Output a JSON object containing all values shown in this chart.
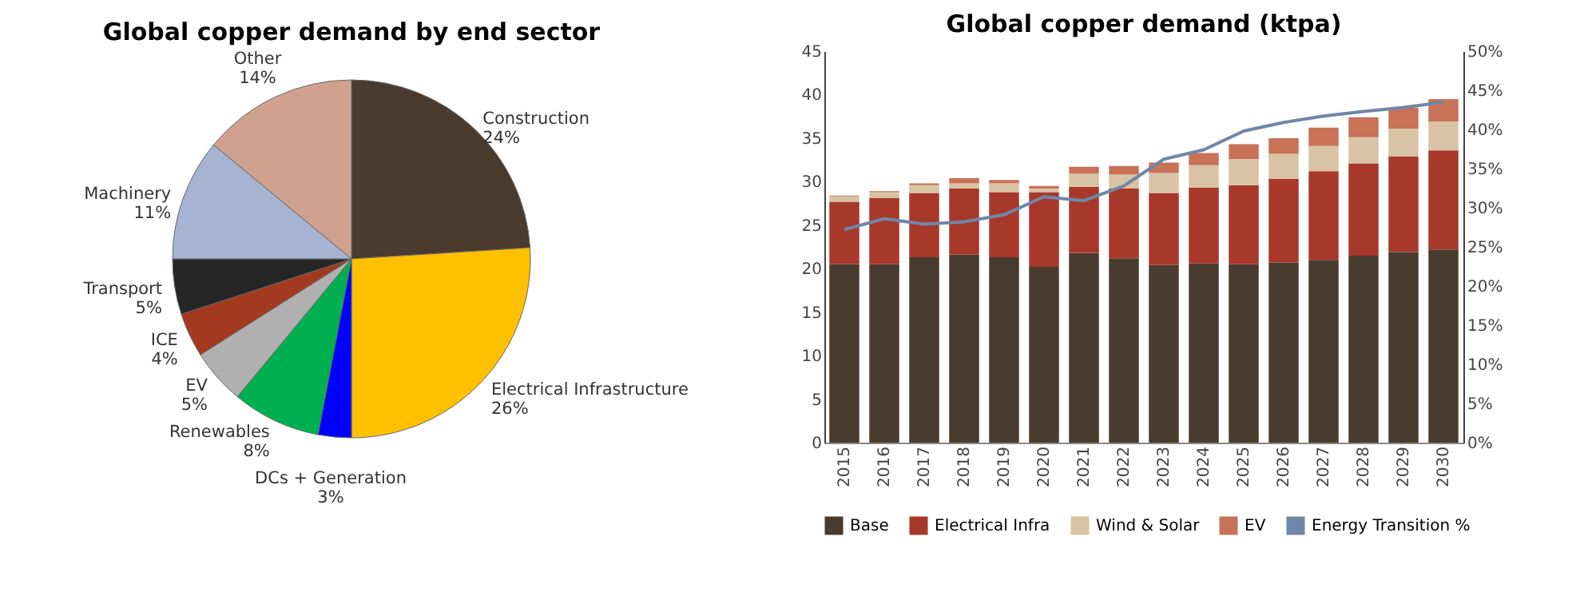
{
  "chart_data": [
    {
      "type": "pie",
      "title": "Global copper demand by end sector",
      "categories": [
        "Construction",
        "Electrical Infrastructure",
        "DCs + Generation",
        "Renewables",
        "EV",
        "ICE",
        "Transport",
        "Machinery",
        "Other"
      ],
      "values": [
        24,
        26,
        3,
        8,
        5,
        4,
        5,
        11,
        14
      ],
      "value_labels": [
        "24%",
        "26%",
        "3%",
        "8%",
        "5%",
        "4%",
        "5%",
        "11%",
        "14%"
      ],
      "colors": [
        "#4b3a2e",
        "#ffc000",
        "#0000ff",
        "#00b050",
        "#b0b0b0",
        "#a33a20",
        "#262626",
        "#a6b4d4",
        "#d1a190"
      ]
    },
    {
      "type": "bar",
      "title": "Global copper demand (ktpa)",
      "stacked": true,
      "legend": "bottom",
      "categories": [
        "2015",
        "2016",
        "2017",
        "2018",
        "2019",
        "2020",
        "2021",
        "2022",
        "2023",
        "2024",
        "2025",
        "2026",
        "2027",
        "2028",
        "2029",
        "2030"
      ],
      "ylim": [
        0,
        45
      ],
      "yticks": [
        0,
        5,
        10,
        15,
        20,
        25,
        30,
        35,
        40,
        45
      ],
      "y2lim": [
        0,
        50
      ],
      "y2ticks": [
        {
          "value": 0,
          "label": "0%"
        },
        {
          "value": 5,
          "label": "5%"
        },
        {
          "value": 10,
          "label": "10%"
        },
        {
          "value": 15,
          "label": "15%"
        },
        {
          "value": 20,
          "label": "20%"
        },
        {
          "value": 25,
          "label": "25%"
        },
        {
          "value": 30,
          "label": "30%"
        },
        {
          "value": 35,
          "label": "35%"
        },
        {
          "value": 40,
          "label": "40%"
        },
        {
          "value": 45,
          "label": "45%"
        },
        {
          "value": 50,
          "label": "50%"
        }
      ],
      "series": [
        {
          "name": "Base",
          "color": "#4a3b2f",
          "values": [
            20.5,
            20.5,
            21.3,
            21.6,
            21.3,
            20.2,
            21.8,
            21.2,
            20.4,
            20.6,
            20.5,
            20.7,
            21.0,
            21.5,
            21.9,
            22.2
          ]
        },
        {
          "name": "Electrical Infra",
          "color": "#a8382a",
          "values": [
            7.2,
            7.6,
            7.4,
            7.6,
            7.5,
            8.6,
            7.6,
            8.0,
            8.3,
            8.7,
            9.1,
            9.6,
            10.2,
            10.6,
            11.0,
            11.4
          ]
        },
        {
          "name": "Wind & Solar",
          "color": "#d9c3a5",
          "values": [
            0.6,
            0.7,
            0.9,
            0.6,
            1.0,
            0.4,
            1.5,
            1.6,
            2.3,
            2.6,
            3.0,
            2.9,
            2.9,
            3.0,
            3.2,
            3.3
          ]
        },
        {
          "name": "EV",
          "color": "#c87258",
          "values": [
            0.1,
            0.1,
            0.2,
            0.6,
            0.4,
            0.3,
            0.8,
            1.0,
            1.2,
            1.4,
            1.7,
            1.8,
            2.1,
            2.3,
            2.4,
            2.6
          ]
        },
        {
          "name": "Energy Transition %",
          "type": "line",
          "axis": "y2",
          "color": "#6f86a8",
          "values": [
            27.2,
            28.6,
            27.9,
            28.2,
            29.1,
            31.4,
            30.9,
            32.8,
            36.2,
            37.4,
            39.8,
            40.9,
            41.7,
            42.3,
            42.8,
            43.5
          ]
        }
      ]
    }
  ]
}
